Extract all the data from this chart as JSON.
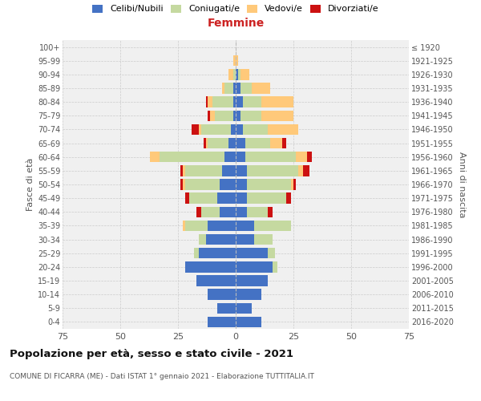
{
  "age_groups": [
    "0-4",
    "5-9",
    "10-14",
    "15-19",
    "20-24",
    "25-29",
    "30-34",
    "35-39",
    "40-44",
    "45-49",
    "50-54",
    "55-59",
    "60-64",
    "65-69",
    "70-74",
    "75-79",
    "80-84",
    "85-89",
    "90-94",
    "95-99",
    "100+"
  ],
  "birth_years": [
    "2016-2020",
    "2011-2015",
    "2006-2010",
    "2001-2005",
    "1996-2000",
    "1991-1995",
    "1986-1990",
    "1981-1985",
    "1976-1980",
    "1971-1975",
    "1966-1970",
    "1961-1965",
    "1956-1960",
    "1951-1955",
    "1946-1950",
    "1941-1945",
    "1936-1940",
    "1931-1935",
    "1926-1930",
    "1921-1925",
    "≤ 1920"
  ],
  "males": {
    "celibi": [
      12,
      8,
      12,
      17,
      22,
      16,
      13,
      12,
      7,
      8,
      7,
      6,
      5,
      3,
      2,
      1,
      1,
      1,
      0,
      0,
      0
    ],
    "coniugati": [
      0,
      0,
      0,
      0,
      0,
      2,
      3,
      10,
      8,
      12,
      15,
      16,
      28,
      9,
      13,
      8,
      9,
      4,
      1,
      0,
      0
    ],
    "vedovi": [
      0,
      0,
      0,
      0,
      0,
      0,
      0,
      1,
      0,
      0,
      1,
      1,
      4,
      1,
      1,
      2,
      2,
      1,
      2,
      1,
      0
    ],
    "divorziati": [
      0,
      0,
      0,
      0,
      0,
      0,
      0,
      0,
      2,
      2,
      1,
      1,
      0,
      1,
      3,
      1,
      1,
      0,
      0,
      0,
      0
    ]
  },
  "females": {
    "nubili": [
      11,
      7,
      11,
      14,
      16,
      14,
      8,
      8,
      5,
      5,
      5,
      5,
      4,
      4,
      3,
      2,
      3,
      2,
      1,
      0,
      0
    ],
    "coniugate": [
      0,
      0,
      0,
      0,
      2,
      3,
      8,
      16,
      9,
      17,
      19,
      22,
      22,
      11,
      11,
      9,
      8,
      5,
      1,
      0,
      0
    ],
    "vedove": [
      0,
      0,
      0,
      0,
      0,
      0,
      0,
      0,
      0,
      0,
      1,
      2,
      5,
      5,
      13,
      14,
      14,
      8,
      4,
      1,
      0
    ],
    "divorziate": [
      0,
      0,
      0,
      0,
      0,
      0,
      0,
      0,
      2,
      2,
      1,
      3,
      2,
      2,
      0,
      0,
      0,
      0,
      0,
      0,
      0
    ]
  },
  "colors": {
    "celibi": "#4472c4",
    "coniugati": "#c5d9a0",
    "vedovi": "#ffc97a",
    "divorziati": "#cc1111"
  },
  "title": "Popolazione per età, sesso e stato civile - 2021",
  "subtitle": "COMUNE DI FICARRA (ME) - Dati ISTAT 1° gennaio 2021 - Elaborazione TUTTITALIA.IT",
  "xlabel_right": "Femmine",
  "ylabel_left": "Fasce di età",
  "ylabel_right": "Anni di nascita",
  "xlim": 75,
  "legend_labels": [
    "Celibi/Nubili",
    "Coniugati/e",
    "Vedovi/e",
    "Divorziati/e"
  ],
  "bg_color": "#f0f0f0",
  "grid_color": "#cccccc"
}
